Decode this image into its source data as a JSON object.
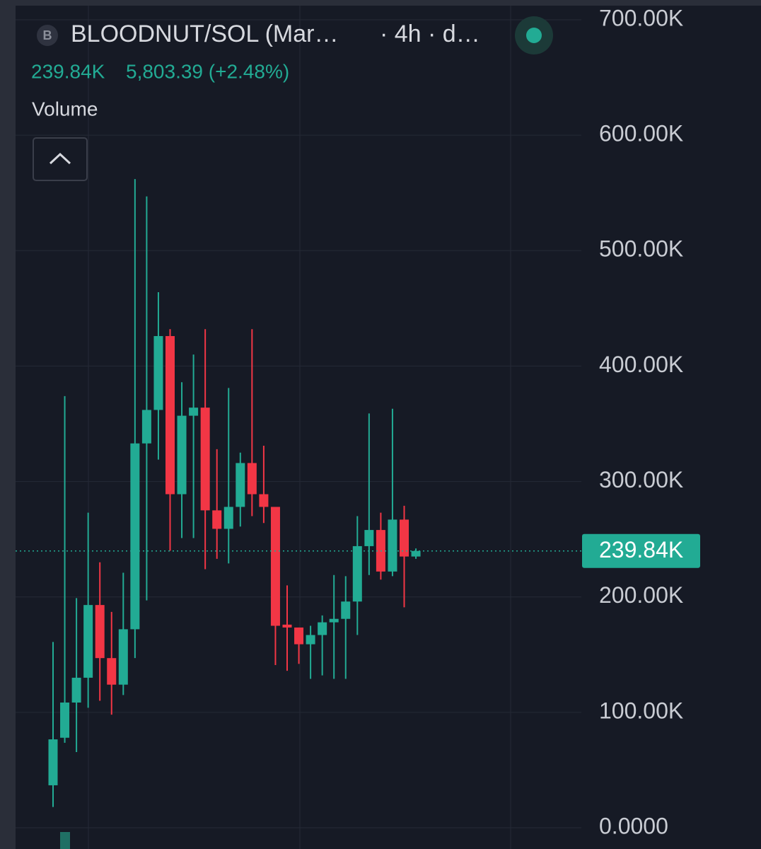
{
  "chart_data": {
    "type": "candlestick",
    "icon": "B",
    "title": "BLOODNUT/SOL (Mar…",
    "interval": "· 4h · d…",
    "price": "239.84K",
    "change": "5,803.39 (+2.48%)",
    "indicator": "Volume",
    "up_color": "#22ab94",
    "down_color": "#f23645",
    "open": [
      36800,
      78000,
      108500,
      130000,
      193000,
      147000,
      124000,
      172000,
      333000,
      362000,
      426000,
      289000,
      357000,
      364000,
      275000,
      259000,
      278000,
      316000,
      289000,
      278000,
      176000,
      173500,
      159000,
      167000,
      178000,
      181000,
      196000,
      244000,
      258000,
      222000,
      267000,
      235000
    ],
    "high": [
      161000,
      374000,
      199000,
      273000,
      230000,
      187000,
      221000,
      562000,
      547000,
      464000,
      432000,
      386000,
      410000,
      432000,
      328000,
      381000,
      325000,
      432000,
      331000,
      278000,
      210000,
      173500,
      175000,
      184000,
      219000,
      218000,
      270000,
      359000,
      273000,
      363000,
      279000,
      242000
    ],
    "low": [
      18000,
      73600,
      65600,
      104000,
      110000,
      98000,
      115000,
      147000,
      197000,
      319000,
      240000,
      251000,
      251000,
      224000,
      233000,
      229000,
      261000,
      270000,
      264000,
      141000,
      136000,
      142000,
      129000,
      132000,
      129000,
      129000,
      167000,
      219000,
      215000,
      218000,
      191000,
      233000
    ],
    "close": [
      76600,
      108500,
      130000,
      193000,
      147000,
      124000,
      172000,
      333000,
      362000,
      426000,
      289000,
      357000,
      364000,
      275000,
      259000,
      278000,
      316000,
      289000,
      278000,
      175000,
      173500,
      159000,
      167000,
      178000,
      181000,
      196000,
      244000,
      258000,
      222000,
      267000,
      235000,
      239840
    ],
    "last_price": {
      "value": 239840,
      "label": "239.84K"
    },
    "ylim": [
      0,
      700000
    ],
    "yticks": [
      {
        "value": 0,
        "label": "0.0000"
      },
      {
        "value": 100000,
        "label": "100.00K"
      },
      {
        "value": 200000,
        "label": "200.00K"
      },
      {
        "value": 300000,
        "label": "300.00K"
      },
      {
        "value": 400000,
        "label": "400.00K"
      },
      {
        "value": 500000,
        "label": "500.00K"
      },
      {
        "value": 600000,
        "label": "600.00K"
      },
      {
        "value": 700000,
        "label": "700.00K"
      }
    ],
    "grid": true
  }
}
